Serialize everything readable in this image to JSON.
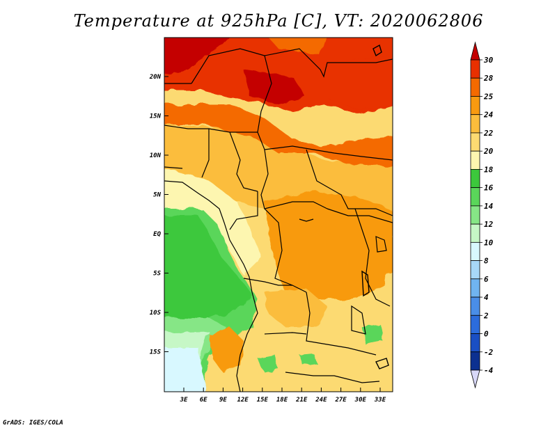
{
  "title": "Temperature at 925hPa [C], VT: 2020062806",
  "credit": "GrADS: IGES/COLA",
  "map": {
    "lat_labels": [
      "20N",
      "15N",
      "10N",
      "5N",
      "EQ",
      "5S",
      "10S",
      "15S"
    ],
    "lon_labels": [
      "3E",
      "6E",
      "9E",
      "12E",
      "15E",
      "18E",
      "21E",
      "24E",
      "27E",
      "30E",
      "33E"
    ]
  },
  "colorbar": {
    "labels": [
      "30",
      "28",
      "25",
      "24",
      "22",
      "20",
      "18",
      "16",
      "14",
      "12",
      "10",
      "8",
      "6",
      "4",
      "2",
      "0",
      "-2",
      "-4"
    ],
    "colors": [
      "#c40000",
      "#e83000",
      "#f46a00",
      "#f89a10",
      "#fbbd3c",
      "#fcda72",
      "#fdf6b0",
      "#3cc83c",
      "#5ad65a",
      "#86e686",
      "#c6f7c6",
      "#d8f8ff",
      "#a8d8f8",
      "#70b4f0",
      "#4a8ee8",
      "#2c6cdc",
      "#1a4fc4",
      "#0c3090",
      "#060a5a"
    ]
  }
}
